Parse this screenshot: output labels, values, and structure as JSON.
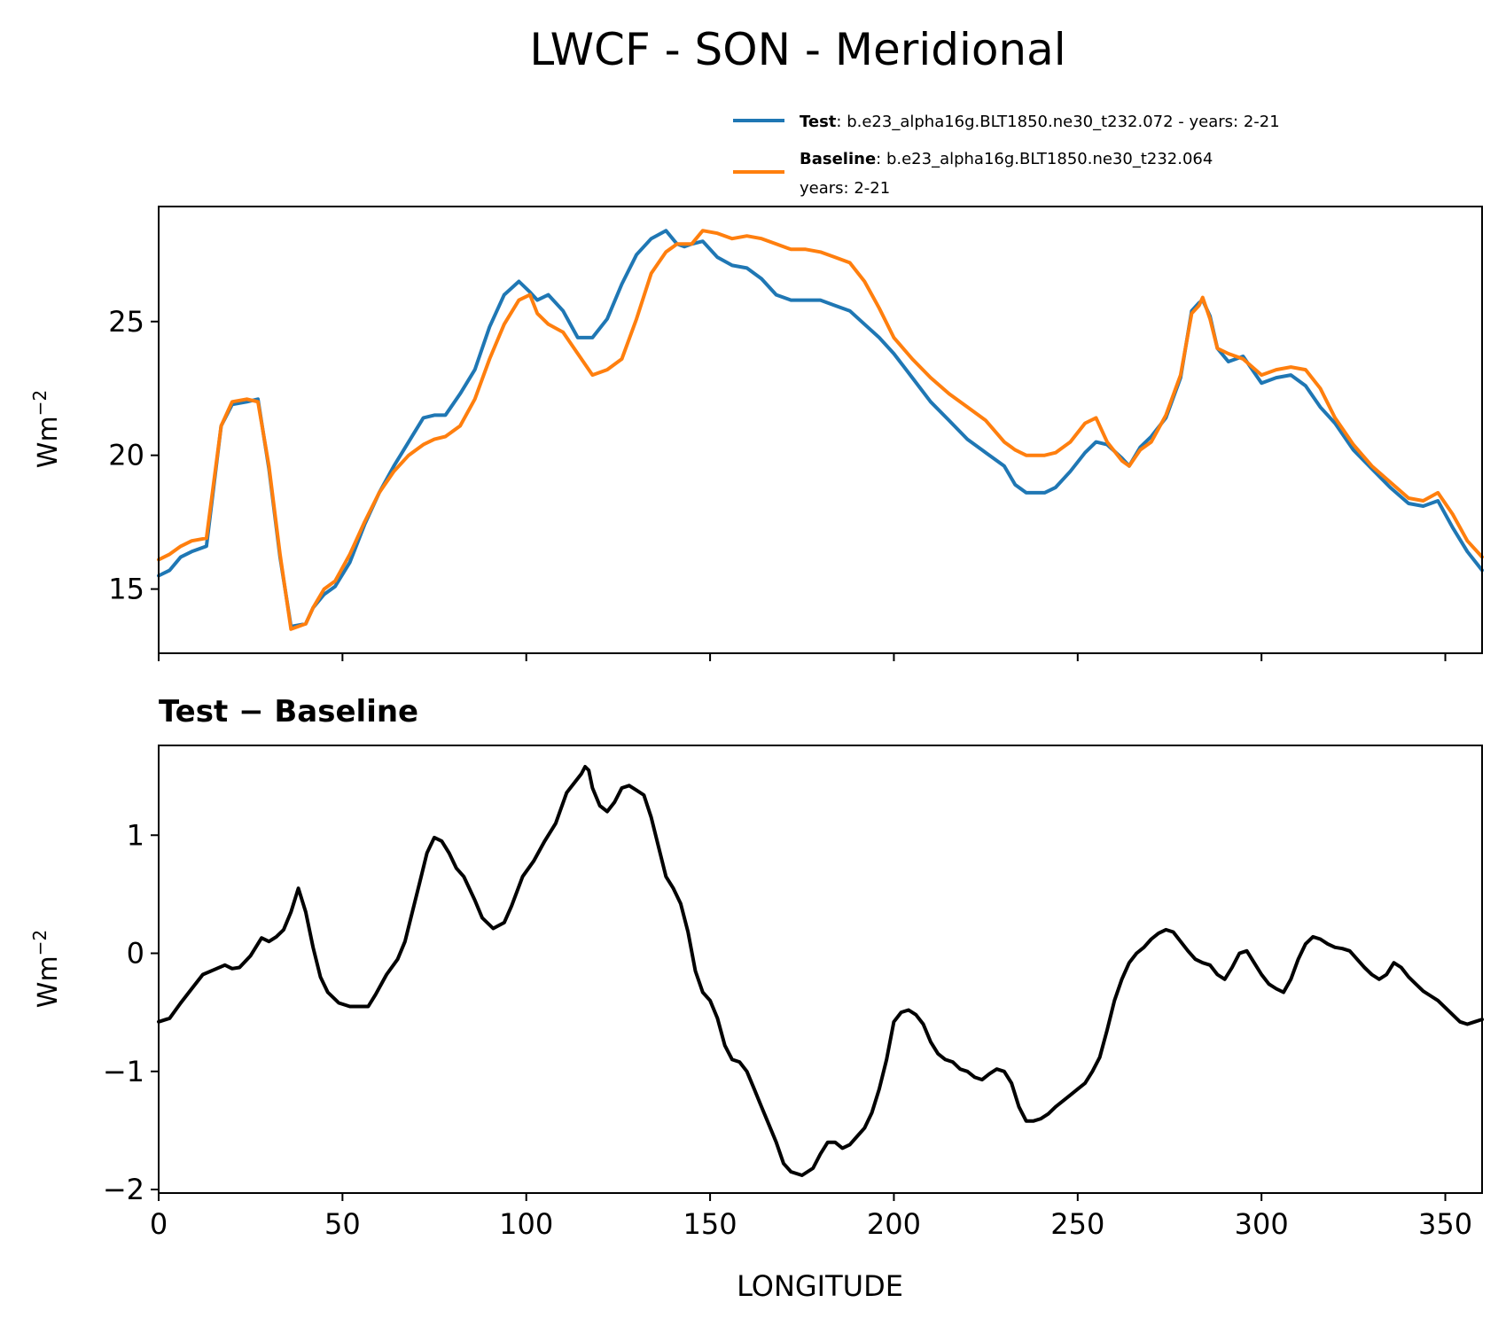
{
  "figure_title": "LWCF - SON - Meridional",
  "legend": {
    "test": {
      "label_bold": "Test",
      "label_text": ": b.e23_alpha16g.BLT1850.ne30_t232.072 - years: 2-21",
      "color": "#1f77b4"
    },
    "baseline": {
      "label_bold": "Baseline",
      "label_text": ": b.e23_alpha16g.BLT1850.ne30_t232.064",
      "label_text_line2": "years: 2-21",
      "color": "#ff7f0e"
    }
  },
  "chart_data": [
    {
      "type": "line",
      "title": "",
      "xlabel": "",
      "ylabel": "Wm",
      "ylabel_sup": "−2",
      "xlim": [
        0,
        360
      ],
      "ylim": [
        12.6,
        29.3
      ],
      "yticks": [
        15,
        20,
        25
      ],
      "ytick_labels": [
        "15",
        "20",
        "25"
      ],
      "xticks": [
        0,
        50,
        100,
        150,
        200,
        250,
        300,
        350
      ],
      "series": [
        {
          "name": "Test",
          "color": "#1f77b4",
          "x": [
            0,
            3,
            6,
            9,
            13,
            17,
            20,
            24,
            27,
            30,
            33,
            36,
            40,
            42,
            45,
            48,
            52,
            56,
            60,
            64,
            68,
            72,
            75,
            78,
            82,
            86,
            90,
            94,
            98,
            101,
            103,
            106,
            110,
            114,
            118,
            122,
            126,
            130,
            134,
            138,
            141,
            143,
            145,
            148,
            152,
            156,
            160,
            164,
            168,
            172,
            176,
            180,
            184,
            188,
            192,
            196,
            200,
            205,
            210,
            215,
            220,
            225,
            230,
            233,
            236,
            239,
            241,
            244,
            248,
            252,
            255,
            258,
            262,
            264,
            267,
            270,
            274,
            278,
            281,
            283,
            284,
            286,
            288,
            291,
            295,
            300,
            304,
            308,
            312,
            316,
            320,
            325,
            330,
            335,
            340,
            344,
            348,
            352,
            356,
            360
          ],
          "y": [
            15.5,
            15.7,
            16.2,
            16.4,
            16.6,
            21.1,
            21.9,
            22.0,
            22.1,
            19.5,
            16.2,
            13.6,
            13.7,
            14.3,
            14.8,
            15.1,
            16.0,
            17.4,
            18.6,
            19.6,
            20.5,
            21.4,
            21.5,
            21.5,
            22.3,
            23.2,
            24.8,
            26.0,
            26.5,
            26.1,
            25.8,
            26.0,
            25.4,
            24.4,
            24.4,
            25.1,
            26.4,
            27.5,
            28.1,
            28.4,
            27.9,
            27.8,
            27.9,
            28.0,
            27.4,
            27.1,
            27.0,
            26.6,
            26.0,
            25.8,
            25.8,
            25.8,
            25.6,
            25.4,
            24.9,
            24.4,
            23.8,
            22.9,
            22.0,
            21.3,
            20.6,
            20.1,
            19.6,
            18.9,
            18.6,
            18.6,
            18.6,
            18.8,
            19.4,
            20.1,
            20.5,
            20.4,
            19.9,
            19.6,
            20.3,
            20.7,
            21.4,
            22.9,
            25.4,
            25.7,
            25.8,
            25.2,
            24.0,
            23.5,
            23.7,
            22.7,
            22.9,
            23.0,
            22.6,
            21.8,
            21.2,
            20.2,
            19.5,
            18.8,
            18.2,
            18.1,
            18.3,
            17.3,
            16.4,
            15.7
          ]
        },
        {
          "name": "Baseline",
          "color": "#ff7f0e",
          "x": [
            0,
            3,
            6,
            9,
            13,
            17,
            20,
            24,
            27,
            30,
            33,
            36,
            40,
            42,
            45,
            48,
            52,
            56,
            60,
            64,
            68,
            72,
            75,
            78,
            82,
            86,
            90,
            94,
            98,
            101,
            103,
            106,
            110,
            114,
            118,
            122,
            126,
            130,
            134,
            138,
            141,
            143,
            145,
            148,
            152,
            156,
            160,
            164,
            168,
            172,
            176,
            180,
            184,
            188,
            192,
            196,
            200,
            205,
            210,
            215,
            220,
            225,
            230,
            233,
            236,
            239,
            241,
            244,
            248,
            252,
            255,
            258,
            262,
            264,
            267,
            270,
            274,
            278,
            281,
            283,
            284,
            286,
            288,
            291,
            295,
            300,
            304,
            308,
            312,
            316,
            320,
            325,
            330,
            335,
            340,
            344,
            348,
            352,
            356,
            360
          ],
          "y": [
            16.1,
            16.3,
            16.6,
            16.8,
            16.9,
            21.1,
            22.0,
            22.1,
            22.0,
            19.6,
            16.3,
            13.5,
            13.7,
            14.3,
            15.0,
            15.3,
            16.3,
            17.5,
            18.6,
            19.4,
            20.0,
            20.4,
            20.6,
            20.7,
            21.1,
            22.1,
            23.6,
            24.9,
            25.8,
            26.0,
            25.3,
            24.9,
            24.6,
            23.8,
            23.0,
            23.2,
            23.6,
            25.1,
            26.8,
            27.6,
            27.9,
            27.9,
            27.9,
            28.4,
            28.3,
            28.1,
            28.2,
            28.1,
            27.9,
            27.7,
            27.7,
            27.6,
            27.4,
            27.2,
            26.5,
            25.5,
            24.4,
            23.6,
            22.9,
            22.3,
            21.8,
            21.3,
            20.5,
            20.2,
            20.0,
            20.0,
            20.0,
            20.1,
            20.5,
            21.2,
            21.4,
            20.5,
            19.8,
            19.6,
            20.2,
            20.5,
            21.5,
            23.0,
            25.3,
            25.6,
            25.9,
            25.1,
            24.0,
            23.8,
            23.6,
            23.0,
            23.2,
            23.3,
            23.2,
            22.5,
            21.4,
            20.4,
            19.6,
            19.0,
            18.4,
            18.3,
            18.6,
            17.8,
            16.8,
            16.2
          ]
        }
      ]
    },
    {
      "type": "line",
      "title": "Test − Baseline",
      "xlabel": "LONGITUDE",
      "ylabel": "Wm",
      "ylabel_sup": "−2",
      "xlim": [
        0,
        360
      ],
      "ylim": [
        -2.03,
        1.76
      ],
      "yticks": [
        -2,
        -1,
        0,
        1
      ],
      "ytick_labels": [
        "−2",
        "−1",
        "0",
        "1"
      ],
      "xticks": [
        0,
        50,
        100,
        150,
        200,
        250,
        300,
        350
      ],
      "xtick_labels": [
        "0",
        "50",
        "100",
        "150",
        "200",
        "250",
        "300",
        "350"
      ],
      "series": [
        {
          "name": "Test - Baseline",
          "color": "#000000",
          "x": [
            0,
            3,
            6,
            9,
            12,
            15,
            18,
            20,
            22,
            25,
            28,
            30,
            32,
            34,
            36,
            38,
            40,
            42,
            44,
            46,
            49,
            52,
            54,
            57,
            59,
            62,
            65,
            67,
            69,
            71,
            73,
            75,
            77,
            79,
            81,
            83,
            86,
            88,
            91,
            94,
            96,
            99,
            102,
            105,
            108,
            111,
            113,
            115,
            116,
            117,
            118,
            120,
            122,
            124,
            126,
            128,
            130,
            132,
            134,
            136,
            138,
            140,
            142,
            144,
            146,
            148,
            150,
            152,
            154,
            156,
            158,
            160,
            162,
            164,
            166,
            168,
            170,
            172,
            175,
            178,
            180,
            182,
            184,
            186,
            188,
            190,
            192,
            194,
            196,
            198,
            200,
            202,
            204,
            206,
            208,
            210,
            212,
            214,
            216,
            218,
            220,
            222,
            224,
            226,
            228,
            230,
            232,
            234,
            236,
            238,
            240,
            242,
            244,
            246,
            248,
            250,
            252,
            254,
            256,
            258,
            260,
            262,
            264,
            266,
            268,
            270,
            272,
            274,
            276,
            278,
            280,
            282,
            284,
            286,
            288,
            290,
            292,
            294,
            296,
            298,
            300,
            302,
            304,
            306,
            308,
            310,
            312,
            314,
            316,
            318,
            320,
            322,
            324,
            326,
            328,
            330,
            332,
            334,
            336,
            338,
            340,
            342,
            344,
            346,
            348,
            350,
            352,
            354,
            356,
            358,
            360
          ],
          "y": [
            -0.58,
            -0.55,
            -0.42,
            -0.3,
            -0.18,
            -0.14,
            -0.1,
            -0.13,
            -0.12,
            -0.02,
            0.13,
            0.1,
            0.14,
            0.2,
            0.35,
            0.55,
            0.35,
            0.05,
            -0.2,
            -0.33,
            -0.42,
            -0.45,
            -0.45,
            -0.45,
            -0.35,
            -0.18,
            -0.05,
            0.1,
            0.35,
            0.6,
            0.85,
            0.98,
            0.95,
            0.85,
            0.72,
            0.65,
            0.45,
            0.3,
            0.21,
            0.26,
            0.4,
            0.65,
            0.78,
            0.95,
            1.1,
            1.36,
            1.44,
            1.52,
            1.58,
            1.55,
            1.4,
            1.25,
            1.2,
            1.28,
            1.4,
            1.42,
            1.38,
            1.34,
            1.15,
            0.9,
            0.65,
            0.55,
            0.42,
            0.18,
            -0.15,
            -0.33,
            -0.4,
            -0.55,
            -0.78,
            -0.9,
            -0.92,
            -1.0,
            -1.15,
            -1.3,
            -1.45,
            -1.6,
            -1.78,
            -1.85,
            -1.88,
            -1.82,
            -1.7,
            -1.6,
            -1.6,
            -1.65,
            -1.62,
            -1.55,
            -1.48,
            -1.35,
            -1.15,
            -0.9,
            -0.58,
            -0.5,
            -0.48,
            -0.52,
            -0.6,
            -0.75,
            -0.85,
            -0.9,
            -0.92,
            -0.98,
            -1.0,
            -1.05,
            -1.07,
            -1.02,
            -0.98,
            -1.0,
            -1.1,
            -1.3,
            -1.42,
            -1.42,
            -1.4,
            -1.36,
            -1.3,
            -1.25,
            -1.2,
            -1.15,
            -1.1,
            -1.0,
            -0.88,
            -0.65,
            -0.4,
            -0.22,
            -0.08,
            0.0,
            0.05,
            0.12,
            0.17,
            0.2,
            0.18,
            0.1,
            0.02,
            -0.05,
            -0.08,
            -0.1,
            -0.18,
            -0.22,
            -0.12,
            0.0,
            0.02,
            -0.08,
            -0.18,
            -0.26,
            -0.3,
            -0.33,
            -0.22,
            -0.05,
            0.08,
            0.14,
            0.12,
            0.08,
            0.05,
            0.04,
            0.02,
            -0.05,
            -0.12,
            -0.18,
            -0.22,
            -0.18,
            -0.08,
            -0.12,
            -0.2,
            -0.26,
            -0.32,
            -0.36,
            -0.4,
            -0.46,
            -0.52,
            -0.58,
            -0.6,
            -0.58,
            -0.56
          ]
        }
      ]
    }
  ]
}
